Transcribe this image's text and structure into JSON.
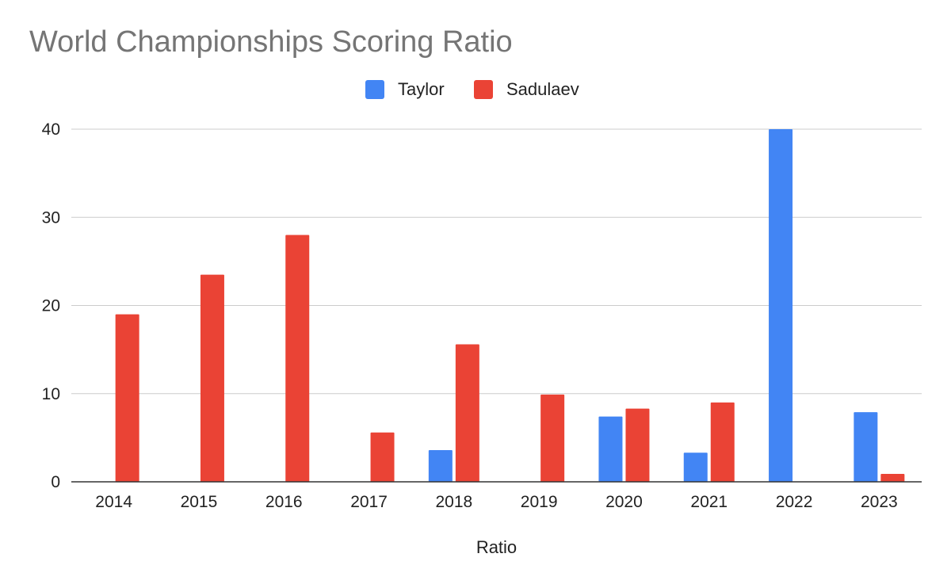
{
  "chart_data": {
    "type": "bar",
    "title": "World Championships Scoring Ratio",
    "xlabel": "Ratio",
    "ylabel": "",
    "categories": [
      "2014",
      "2015",
      "2016",
      "2017",
      "2018",
      "2019",
      "2020",
      "2021",
      "2022",
      "2023"
    ],
    "series": [
      {
        "name": "Taylor",
        "color": "#4285f4",
        "values": [
          null,
          null,
          null,
          null,
          3.6,
          null,
          7.4,
          3.3,
          40,
          7.9
        ]
      },
      {
        "name": "Sadulaev",
        "color": "#ea4335",
        "values": [
          19,
          23.5,
          28,
          5.6,
          15.6,
          9.9,
          8.3,
          9.0,
          null,
          0.9
        ]
      }
    ],
    "ylim": [
      0,
      40
    ],
    "yticks": [
      0,
      10,
      20,
      30,
      40
    ],
    "grid": true,
    "legend_position": "top-center"
  }
}
